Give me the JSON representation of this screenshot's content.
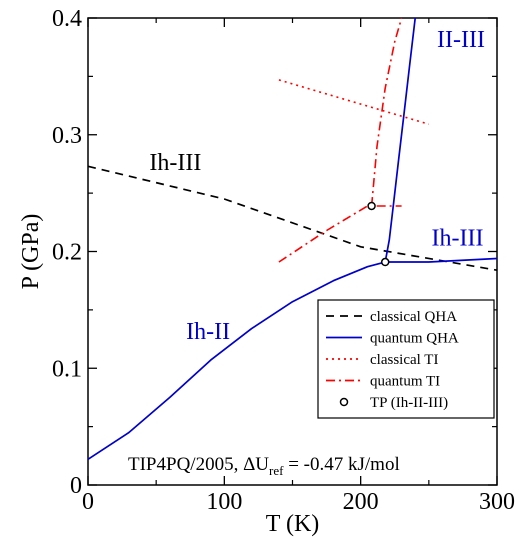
{
  "chart_data": {
    "type": "line",
    "xlabel": "T (K)",
    "ylabel": "P (GPa)",
    "xlim": [
      0,
      300
    ],
    "ylim": [
      0,
      0.4
    ],
    "x_ticks": [
      "0",
      "100",
      "200",
      "300"
    ],
    "y_ticks": [
      "0",
      "0.1",
      "0.2",
      "0.3",
      "0.4"
    ],
    "grid": false,
    "legend_position": "bottom-right",
    "annotation": "TIP4PQ/2005, ΔU",
    "annotation_sub": "ref",
    "annotation_tail": " = -0.47 kJ/mol",
    "curve_labels": [
      {
        "text": "Ih-III",
        "x": 45,
        "y": 0.27,
        "color": "#000000"
      },
      {
        "text": "Ih-III",
        "x": 252,
        "y": 0.205,
        "color": "#0000cc"
      },
      {
        "text": "II-III",
        "x": 256,
        "y": 0.375,
        "color": "#0000cc"
      },
      {
        "text": "Ih-II",
        "x": 72,
        "y": 0.125,
        "color": "#0000cc"
      }
    ],
    "series": [
      {
        "name": "classical QHA",
        "color": "#000000",
        "dash": "8,6",
        "width": 1.7,
        "points": [
          [
            0,
            0.273
          ],
          [
            100,
            0.245
          ],
          [
            200,
            0.204
          ],
          [
            300,
            0.184
          ]
        ]
      },
      {
        "name": "quantum QHA",
        "color": "#0000cc",
        "dash": "",
        "width": 1.7,
        "points": [
          [
            0,
            0.022
          ],
          [
            30,
            0.045
          ],
          [
            60,
            0.075
          ],
          [
            90,
            0.107
          ],
          [
            120,
            0.134
          ],
          [
            150,
            0.157
          ],
          [
            180,
            0.175
          ],
          [
            205,
            0.187
          ],
          [
            218,
            0.191
          ],
          [
            250,
            0.191
          ],
          [
            300,
            0.194
          ]
        ]
      },
      {
        "name": "quantum QHA",
        "color": "#0000cc",
        "dash": "",
        "width": 1.7,
        "legend": false,
        "points": [
          [
            218,
            0.191
          ],
          [
            221,
            0.21
          ],
          [
            224,
            0.24
          ],
          [
            228,
            0.28
          ],
          [
            232,
            0.32
          ],
          [
            236,
            0.36
          ],
          [
            240,
            0.4
          ]
        ]
      },
      {
        "name": "classical TI",
        "color": "#ff0000",
        "dash": "2,4",
        "width": 1.6,
        "points": [
          [
            140,
            0.347
          ],
          [
            250,
            0.309
          ]
        ]
      },
      {
        "name": "quantum TI",
        "color": "#ff0000",
        "dash": "9,4,2,4",
        "width": 1.6,
        "points": [
          [
            140,
            0.191
          ],
          [
            175,
            0.218
          ],
          [
            205,
            0.239
          ],
          [
            230,
            0.239
          ]
        ]
      },
      {
        "name": "quantum TI",
        "color": "#ff0000",
        "dash": "9,4,2,4",
        "width": 1.6,
        "legend": false,
        "points": [
          [
            208,
            0.239
          ],
          [
            212,
            0.29
          ],
          [
            218,
            0.34
          ],
          [
            225,
            0.38
          ],
          [
            230,
            0.4
          ]
        ]
      }
    ],
    "markers": [
      {
        "name": "TP (Ih-II-III)",
        "points": [
          [
            208,
            0.239
          ],
          [
            218,
            0.191
          ]
        ]
      }
    ],
    "legend": [
      {
        "label": "classical QHA",
        "color": "#000000",
        "dash": "8,6",
        "kind": "line"
      },
      {
        "label": "quantum QHA",
        "color": "#0000cc",
        "dash": "",
        "kind": "line"
      },
      {
        "label": "classical TI",
        "color": "#ff0000",
        "dash": "2,4",
        "kind": "line"
      },
      {
        "label": "quantum TI",
        "color": "#ff0000",
        "dash": "9,4,2,4",
        "kind": "line"
      },
      {
        "label": "TP (Ih-II-III)",
        "color": "#000000",
        "dash": "",
        "kind": "marker"
      }
    ]
  }
}
